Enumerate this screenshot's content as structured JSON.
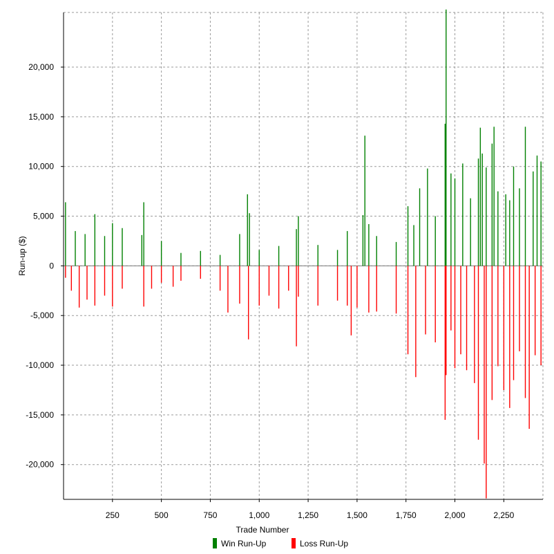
{
  "chart_data": {
    "type": "bar",
    "title": "",
    "xlabel": "Trade Number",
    "ylabel": "Run-up ($)",
    "x_range": [
      0,
      2450
    ],
    "y_range": [
      -23500,
      25500
    ],
    "x_ticks": [
      250,
      500,
      750,
      1000,
      1250,
      1500,
      1750,
      2000,
      2250
    ],
    "x_tick_labels": [
      "250",
      "500",
      "750",
      "1,000",
      "1,250",
      "1,500",
      "1,750",
      "2,000",
      "2,250"
    ],
    "y_ticks": [
      -20000,
      -15000,
      -10000,
      -5000,
      0,
      5000,
      10000,
      15000,
      20000
    ],
    "y_tick_labels": [
      "-20,000",
      "-15,000",
      "-10,000",
      "-5,000",
      "0",
      "5,000",
      "10,000",
      "15,000",
      "20,000"
    ],
    "grid": true,
    "legend_position": "bottom",
    "series": [
      {
        "name": "Win Run-Up",
        "color": "#008000",
        "x": [
          10,
          60,
          110,
          160,
          210,
          250,
          300,
          400,
          410,
          500,
          600,
          700,
          800,
          900,
          940,
          950,
          1000,
          1100,
          1190,
          1200,
          1300,
          1400,
          1450,
          1530,
          1540,
          1560,
          1600,
          1700,
          1760,
          1790,
          1820,
          1860,
          1900,
          1950,
          1955,
          1980,
          2000,
          2040,
          2080,
          2120,
          2130,
          2140,
          2160,
          2190,
          2200,
          2220,
          2260,
          2280,
          2300,
          2330,
          2360,
          2400,
          2420,
          2440
        ],
        "values": [
          6400,
          3500,
          3200,
          5200,
          3000,
          4300,
          3800,
          3100,
          6400,
          2500,
          1300,
          1500,
          1100,
          3200,
          7200,
          5300,
          1600,
          2000,
          3700,
          5000,
          2100,
          1600,
          3500,
          5100,
          13100,
          4200,
          3000,
          2400,
          6000,
          4100,
          7800,
          9800,
          5000,
          14300,
          25800,
          9300,
          8800,
          10300,
          6800,
          10800,
          13900,
          11300,
          9900,
          12300,
          14000,
          7500,
          7200,
          6600,
          10000,
          7800,
          14000,
          9500,
          11100,
          10500
        ]
      },
      {
        "name": "Loss Run-Up",
        "color": "#ff0000",
        "x": [
          10,
          40,
          80,
          120,
          160,
          210,
          250,
          300,
          410,
          450,
          500,
          560,
          600,
          700,
          800,
          840,
          900,
          945,
          1000,
          1050,
          1100,
          1150,
          1190,
          1200,
          1300,
          1400,
          1450,
          1470,
          1500,
          1560,
          1600,
          1700,
          1760,
          1800,
          1850,
          1900,
          1950,
          1955,
          1980,
          2000,
          2030,
          2060,
          2100,
          2120,
          2150,
          2160,
          2190,
          2220,
          2250,
          2280,
          2300,
          2330,
          2360,
          2380,
          2410,
          2440
        ],
        "values": [
          -1200,
          -2500,
          -4200,
          -3400,
          -4000,
          -3000,
          -4100,
          -2300,
          -4100,
          -2300,
          -1700,
          -2100,
          -1500,
          -1300,
          -2500,
          -4700,
          -3800,
          -7400,
          -4000,
          -3000,
          -4300,
          -2500,
          -8100,
          -3100,
          -4000,
          -3500,
          -4000,
          -7000,
          -4200,
          -4700,
          -4600,
          -4800,
          -8900,
          -11200,
          -6900,
          -7700,
          -15500,
          -11000,
          -6500,
          -10300,
          -8900,
          -10500,
          -11800,
          -17500,
          -19900,
          -23400,
          -13500,
          -10100,
          -12500,
          -14300,
          -11500,
          -8600,
          -13300,
          -16400,
          -9000,
          -10000
        ]
      }
    ]
  }
}
